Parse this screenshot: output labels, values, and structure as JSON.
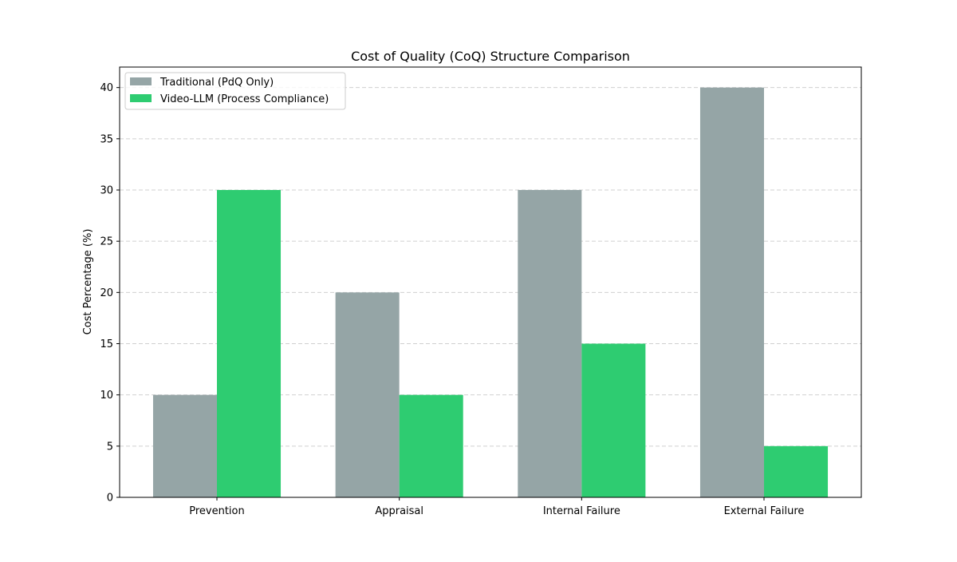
{
  "chart_data": {
    "type": "bar",
    "title": "Cost of Quality (CoQ) Structure Comparison",
    "xlabel": "",
    "ylabel": "Cost Percentage (%)",
    "categories": [
      "Prevention",
      "Appraisal",
      "Internal Failure",
      "External Failure"
    ],
    "series": [
      {
        "name": "Traditional (PdQ Only)",
        "values": [
          10,
          20,
          30,
          40
        ],
        "color": "#95a5a6"
      },
      {
        "name": "Video-LLM (Process Compliance)",
        "values": [
          30,
          10,
          15,
          5
        ],
        "color": "#2ecc71"
      }
    ],
    "ylim": [
      0,
      42
    ],
    "yticks": [
      0,
      5,
      10,
      15,
      20,
      25,
      30,
      35,
      40
    ],
    "grid": "y-dashed",
    "legend_position": "top-left"
  }
}
